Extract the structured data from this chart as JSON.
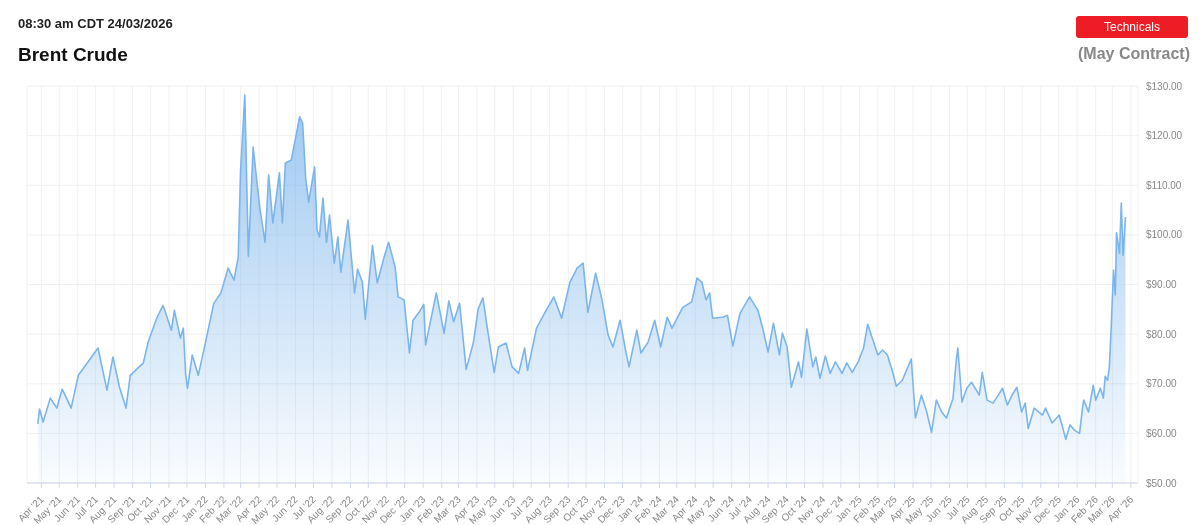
{
  "chart_data": {
    "type": "area",
    "title": "Brent Crude",
    "subtitle": "(May Contract)",
    "annotations": [
      "08:30 am CDT 24/03/2026",
      "Technicals"
    ],
    "color": "#7cb5ec",
    "grid": true,
    "legend": false,
    "x": [
      "2021-03-26",
      "2021-03-29",
      "2021-04-04",
      "2021-04-16",
      "2021-04-27",
      "2021-05-06",
      "2021-05-21",
      "2021-06-02",
      "2021-06-17",
      "2021-07-05",
      "2021-07-20",
      "2021-07-30",
      "2021-08-10",
      "2021-08-21",
      "2021-08-28",
      "2021-09-19",
      "2021-09-27",
      "2021-10-12",
      "2021-10-22",
      "2021-11-05",
      "2021-11-10",
      "2021-11-20",
      "2021-11-25",
      "2021-11-29",
      "2021-12-02",
      "2021-12-10",
      "2021-12-20",
      "2022-01-02",
      "2022-01-15",
      "2022-01-27",
      "2022-02-08",
      "2022-02-18",
      "2022-02-25",
      "2022-03-01",
      "2022-03-08",
      "2022-03-14",
      "2022-03-22",
      "2022-04-02",
      "2022-04-11",
      "2022-04-17",
      "2022-04-24",
      "2022-05-05",
      "2022-05-10",
      "2022-05-15",
      "2022-05-25",
      "2022-06-08",
      "2022-06-13",
      "2022-06-18",
      "2022-06-23",
      "2022-07-03",
      "2022-07-07",
      "2022-07-11",
      "2022-07-17",
      "2022-07-23",
      "2022-07-28",
      "2022-08-05",
      "2022-08-11",
      "2022-08-16",
      "2022-08-28",
      "2022-09-08",
      "2022-09-13",
      "2022-09-21",
      "2022-09-26",
      "2022-10-08",
      "2022-10-16",
      "2022-10-26",
      "2022-11-04",
      "2022-11-15",
      "2022-11-20",
      "2022-11-30",
      "2022-12-09",
      "2022-12-15",
      "2022-12-25",
      "2023-01-02",
      "2023-01-05",
      "2023-01-23",
      "2023-02-05",
      "2023-02-13",
      "2023-02-21",
      "2023-03-03",
      "2023-03-14",
      "2023-03-26",
      "2023-04-03",
      "2023-04-11",
      "2023-04-19",
      "2023-04-30",
      "2023-05-07",
      "2023-05-20",
      "2023-05-30",
      "2023-06-10",
      "2023-06-20",
      "2023-06-25",
      "2023-07-10",
      "2023-07-26",
      "2023-08-08",
      "2023-08-21",
      "2023-09-04",
      "2023-09-16",
      "2023-09-26",
      "2023-10-04",
      "2023-10-17",
      "2023-10-27",
      "2023-11-07",
      "2023-11-15",
      "2023-11-27",
      "2023-12-07",
      "2023-12-12",
      "2023-12-25",
      "2024-01-01",
      "2024-01-13",
      "2024-01-24",
      "2024-02-03",
      "2024-02-14",
      "2024-02-22",
      "2024-03-11",
      "2024-03-26",
      "2024-04-04",
      "2024-04-12",
      "2024-04-19",
      "2024-04-25",
      "2024-04-30",
      "2024-05-17",
      "2024-05-25",
      "2024-06-03",
      "2024-06-15",
      "2024-07-01",
      "2024-07-15",
      "2024-07-23",
      "2024-08-01",
      "2024-08-10",
      "2024-08-20",
      "2024-08-25",
      "2024-09-02",
      "2024-09-09",
      "2024-09-21",
      "2024-09-26",
      "2024-10-05",
      "2024-10-15",
      "2024-10-20",
      "2024-10-27",
      "2024-11-05",
      "2024-11-13",
      "2024-11-22",
      "2024-12-03",
      "2024-12-11",
      "2024-12-20",
      "2024-12-30",
      "2025-01-08",
      "2025-01-15",
      "2025-02-01",
      "2025-02-09",
      "2025-02-17",
      "2025-02-26",
      "2025-03-04",
      "2025-03-14",
      "2025-03-29",
      "2025-04-05",
      "2025-04-15",
      "2025-04-23",
      "2025-05-02",
      "2025-05-10",
      "2025-05-19",
      "2025-05-27",
      "2025-06-07",
      "2025-06-12",
      "2025-06-15",
      "2025-06-22",
      "2025-06-30",
      "2025-07-08",
      "2025-07-16",
      "2025-07-21",
      "2025-07-26",
      "2025-08-03",
      "2025-08-13",
      "2025-08-24",
      "2025-08-29",
      "2025-09-06",
      "2025-09-14",
      "2025-09-22",
      "2025-09-30",
      "2025-10-06",
      "2025-10-11",
      "2025-10-21",
      "2025-11-04",
      "2025-11-09",
      "2025-11-20",
      "2025-12-02",
      "2025-12-13",
      "2025-12-20",
      "2025-12-28",
      "2026-01-05",
      "2026-01-10",
      "2026-01-12",
      "2026-01-20",
      "2026-01-28",
      "2026-02-01",
      "2026-02-09",
      "2026-02-14",
      "2026-02-17",
      "2026-02-21",
      "2026-02-24",
      "2026-02-27",
      "2026-03-03",
      "2026-03-06",
      "2026-03-08",
      "2026-03-13",
      "2026-03-16",
      "2026-03-19",
      "2026-03-23"
    ],
    "values": [
      61.9,
      64.9,
      62.3,
      67.1,
      65.1,
      68.9,
      65.1,
      71.7,
      74.2,
      77.2,
      68.7,
      75.4,
      69.3,
      65.1,
      71.7,
      74.2,
      78.4,
      83.4,
      85.8,
      80.8,
      84.8,
      79.2,
      81.2,
      71.7,
      69.1,
      75.8,
      71.7,
      78.8,
      86.2,
      88.3,
      93.3,
      90.9,
      95.5,
      113.1,
      128.2,
      95.7,
      117.7,
      105.6,
      98.5,
      112.1,
      102.4,
      112.5,
      102.4,
      114.5,
      115.1,
      123.8,
      122.5,
      111.5,
      106.6,
      113.7,
      101.0,
      99.6,
      107.4,
      98.5,
      104.0,
      94.3,
      99.6,
      92.5,
      103.0,
      88.3,
      93.1,
      90.5,
      83.0,
      97.9,
      90.3,
      94.9,
      98.5,
      93.5,
      87.5,
      86.9,
      76.2,
      82.8,
      84.4,
      86.0,
      77.8,
      88.3,
      80.2,
      86.7,
      82.5,
      86.2,
      72.9,
      78.2,
      85.0,
      87.3,
      80.8,
      72.3,
      77.4,
      78.2,
      73.4,
      72.1,
      77.2,
      72.7,
      81.2,
      84.8,
      87.5,
      83.2,
      90.5,
      93.3,
      94.3,
      84.4,
      92.3,
      87.3,
      79.8,
      77.4,
      82.8,
      76.2,
      73.4,
      80.8,
      76.2,
      78.4,
      82.8,
      77.4,
      83.4,
      81.2,
      85.4,
      86.5,
      91.3,
      90.5,
      86.9,
      88.3,
      83.2,
      83.4,
      83.8,
      77.6,
      84.2,
      87.5,
      84.8,
      81.2,
      76.4,
      82.2,
      75.8,
      80.2,
      77.4,
      69.3,
      74.4,
      71.3,
      81.0,
      73.4,
      75.4,
      71.1,
      75.6,
      72.1,
      74.4,
      72.1,
      74.2,
      72.3,
      74.4,
      77.2,
      82.0,
      75.8,
      76.8,
      75.8,
      72.3,
      69.5,
      70.7,
      75.0,
      63.1,
      67.7,
      64.7,
      60.2,
      66.7,
      64.3,
      63.1,
      67.1,
      74.2,
      77.2,
      66.3,
      69.1,
      70.3,
      68.7,
      67.7,
      72.3,
      66.7,
      66.1,
      68.1,
      69.1,
      65.7,
      67.7,
      69.3,
      64.3,
      66.1,
      61.0,
      65.1,
      63.7,
      65.1,
      62.1,
      63.7,
      58.8,
      61.7,
      60.6,
      60.0,
      65.1,
      66.7,
      64.3,
      69.7,
      66.7,
      69.1,
      67.1,
      71.5,
      70.7,
      73.4,
      81.2,
      92.9,
      87.9,
      100.4,
      96.3,
      106.4,
      95.9,
      103.6
    ],
    "xlim": [
      "2021-03-08",
      "2026-04-13"
    ],
    "xticks": [
      {
        "value": "2021-04-01",
        "label": "Apr '21"
      },
      {
        "value": "2021-05-01",
        "label": "May '21"
      },
      {
        "value": "2021-06-01",
        "label": "Jun '21"
      },
      {
        "value": "2021-07-01",
        "label": "Jul '21"
      },
      {
        "value": "2021-08-01",
        "label": "Aug '21"
      },
      {
        "value": "2021-09-01",
        "label": "Sep '21"
      },
      {
        "value": "2021-10-01",
        "label": "Oct '21"
      },
      {
        "value": "2021-11-01",
        "label": "Nov '21"
      },
      {
        "value": "2021-12-01",
        "label": "Dec '21"
      },
      {
        "value": "2022-01-01",
        "label": "Jan '22"
      },
      {
        "value": "2022-02-01",
        "label": "Feb '22"
      },
      {
        "value": "2022-03-01",
        "label": "Mar '22"
      },
      {
        "value": "2022-04-01",
        "label": "Apr '22"
      },
      {
        "value": "2022-05-01",
        "label": "May '22"
      },
      {
        "value": "2022-06-01",
        "label": "Jun '22"
      },
      {
        "value": "2022-07-01",
        "label": "Jul '22"
      },
      {
        "value": "2022-08-01",
        "label": "Aug '22"
      },
      {
        "value": "2022-09-01",
        "label": "Sep '22"
      },
      {
        "value": "2022-10-01",
        "label": "Oct '22"
      },
      {
        "value": "2022-11-01",
        "label": "Nov '22"
      },
      {
        "value": "2022-12-01",
        "label": "Dec '22"
      },
      {
        "value": "2023-01-01",
        "label": "Jan '23"
      },
      {
        "value": "2023-02-01",
        "label": "Feb '23"
      },
      {
        "value": "2023-03-01",
        "label": "Mar '23"
      },
      {
        "value": "2023-04-01",
        "label": "Apr '23"
      },
      {
        "value": "2023-05-01",
        "label": "May '23"
      },
      {
        "value": "2023-06-01",
        "label": "Jun '23"
      },
      {
        "value": "2023-07-01",
        "label": "Jul '23"
      },
      {
        "value": "2023-08-01",
        "label": "Aug '23"
      },
      {
        "value": "2023-09-01",
        "label": "Sep '23"
      },
      {
        "value": "2023-10-01",
        "label": "Oct '23"
      },
      {
        "value": "2023-11-01",
        "label": "Nov '23"
      },
      {
        "value": "2023-12-01",
        "label": "Dec '23"
      },
      {
        "value": "2024-01-01",
        "label": "Jan '24"
      },
      {
        "value": "2024-02-01",
        "label": "Feb '24"
      },
      {
        "value": "2024-03-01",
        "label": "Mar '24"
      },
      {
        "value": "2024-04-01",
        "label": "Apr '24"
      },
      {
        "value": "2024-05-01",
        "label": "May '24"
      },
      {
        "value": "2024-06-01",
        "label": "Jun '24"
      },
      {
        "value": "2024-07-01",
        "label": "Jul '24"
      },
      {
        "value": "2024-08-01",
        "label": "Aug '24"
      },
      {
        "value": "2024-09-01",
        "label": "Sep '24"
      },
      {
        "value": "2024-10-01",
        "label": "Oct '24"
      },
      {
        "value": "2024-11-01",
        "label": "Nov '24"
      },
      {
        "value": "2024-12-01",
        "label": "Dec '24"
      },
      {
        "value": "2025-01-01",
        "label": "Jan '25"
      },
      {
        "value": "2025-02-01",
        "label": "Feb '25"
      },
      {
        "value": "2025-03-01",
        "label": "Mar '25"
      },
      {
        "value": "2025-04-01",
        "label": "Apr '25"
      },
      {
        "value": "2025-05-01",
        "label": "May '25"
      },
      {
        "value": "2025-06-01",
        "label": "Jun '25"
      },
      {
        "value": "2025-07-01",
        "label": "Jul '25"
      },
      {
        "value": "2025-08-01",
        "label": "Aug '25"
      },
      {
        "value": "2025-09-01",
        "label": "Sep '25"
      },
      {
        "value": "2025-10-01",
        "label": "Oct '25"
      },
      {
        "value": "2025-11-01",
        "label": "Nov '25"
      },
      {
        "value": "2025-12-01",
        "label": "Dec '25"
      },
      {
        "value": "2026-01-01",
        "label": "Jan '26"
      },
      {
        "value": "2026-02-01",
        "label": "Feb '26"
      },
      {
        "value": "2026-03-01",
        "label": "Mar '26"
      },
      {
        "value": "2026-04-01",
        "label": "Apr '26"
      }
    ],
    "ylim": [
      50,
      130
    ],
    "yticks": [
      {
        "value": 50,
        "label": "$50.00"
      },
      {
        "value": 60,
        "label": "$60.00"
      },
      {
        "value": 70,
        "label": "$70.00"
      },
      {
        "value": 80,
        "label": "$80.00"
      },
      {
        "value": 90,
        "label": "$90.00"
      },
      {
        "value": 100,
        "label": "$100.00"
      },
      {
        "value": 110,
        "label": "$110.00"
      },
      {
        "value": 120,
        "label": "$120.00"
      },
      {
        "value": 130,
        "label": "$130.00"
      }
    ]
  }
}
